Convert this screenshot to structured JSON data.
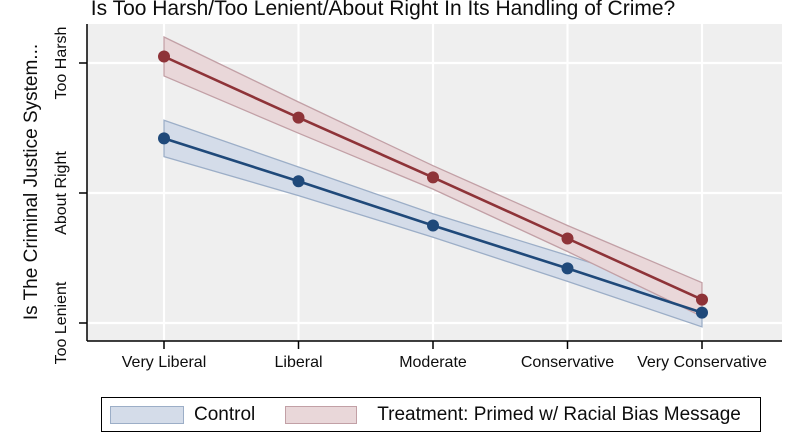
{
  "title": "Is Too Harsh/Too Lenient/About Right In Its Handling of Crime?",
  "y_axis": {
    "title": "Is The Criminal Justice System...",
    "tick_labels": [
      "Too Lenient",
      "About Right",
      "Too Harsh"
    ],
    "tick_values": [
      1,
      2,
      3
    ]
  },
  "x_axis": {
    "categories": [
      "Very Liberal",
      "Liberal",
      "Moderate",
      "Conservative",
      "Very Conservative"
    ]
  },
  "legend": {
    "items": [
      {
        "label": "Control",
        "swatch_fill": "#d4dce9",
        "swatch_border": "#9caec7"
      },
      {
        "label": "Treatment: Primed w/ Racial Bias Message",
        "swatch_fill": "#e9d7d9",
        "swatch_border": "#c2a0a6"
      }
    ]
  },
  "colors": {
    "plot_background": "#efefef",
    "gridline": "#ffffff",
    "axis": "#000000",
    "control_line": "#1f497a",
    "treatment_line": "#8e3338",
    "control_band_fill": "#d4dce9",
    "control_band_border": "#9caec7",
    "treatment_band_fill": "#e9d7d9",
    "treatment_band_border": "#c2a0a6"
  },
  "chart_data": {
    "type": "line",
    "title": "Is Too Harsh/Too Lenient/About Right In Its Handling of Crime?",
    "xlabel": "",
    "ylabel": "Is The Criminal Justice System...",
    "categories": [
      "Very Liberal",
      "Liberal",
      "Moderate",
      "Conservative",
      "Very Conservative"
    ],
    "y_ticks": [
      {
        "value": 1,
        "label": "Too Lenient"
      },
      {
        "value": 2,
        "label": "About Right"
      },
      {
        "value": 3,
        "label": "Too Harsh"
      }
    ],
    "ylim": [
      0.89,
      3.3
    ],
    "grid": true,
    "legend_position": "bottom",
    "series": [
      {
        "name": "Control",
        "values": [
          2.42,
          2.09,
          1.75,
          1.42,
          1.08
        ],
        "ci_lower": [
          2.28,
          1.98,
          1.66,
          1.32,
          0.97
        ],
        "ci_upper": [
          2.56,
          2.2,
          1.84,
          1.52,
          1.19
        ],
        "line_color": "#1f497a",
        "band_fill": "#d4dce9",
        "band_border": "#9caec7"
      },
      {
        "name": "Treatment: Primed w/ Racial Bias Message",
        "values": [
          3.05,
          2.58,
          2.12,
          1.65,
          1.18
        ],
        "ci_lower": [
          2.9,
          2.46,
          2.03,
          1.55,
          1.05
        ],
        "ci_upper": [
          3.2,
          2.7,
          2.21,
          1.75,
          1.31
        ],
        "line_color": "#8e3338",
        "band_fill": "#e9d7d9",
        "band_border": "#c2a0a6"
      }
    ]
  }
}
